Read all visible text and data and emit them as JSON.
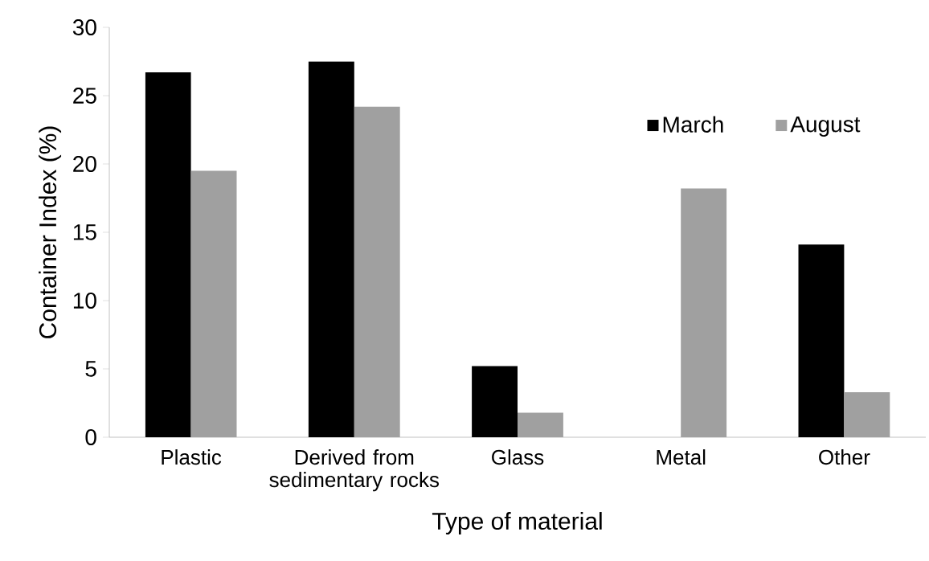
{
  "chart_data": {
    "type": "bar",
    "xlabel": "Type of material",
    "ylabel": "Container Index (%)",
    "categories": [
      "Plastic",
      "Derived from sedimentary rocks",
      "Glass",
      "Metal",
      "Other"
    ],
    "series": [
      {
        "name": "March",
        "color": "#000000",
        "values": [
          26.7,
          27.5,
          5.2,
          0,
          14.1
        ]
      },
      {
        "name": "August",
        "color": "#a0a0a0",
        "values": [
          19.5,
          24.2,
          1.8,
          18.2,
          3.3
        ]
      }
    ],
    "ylim": [
      0,
      30
    ],
    "yticks": [
      0,
      5,
      10,
      15,
      20,
      25,
      30
    ],
    "grid": false,
    "legend": "top right"
  }
}
